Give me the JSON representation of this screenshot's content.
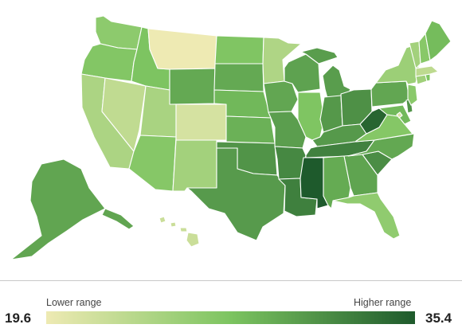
{
  "legend": {
    "min": "19.6",
    "max": "35.4",
    "low_label": "Lower range",
    "high_label": "Higher range",
    "scale_min": 19.6,
    "scale_max": 35.4
  },
  "colors": {
    "low": "#eeeab3",
    "mid": "#7cc460",
    "high": "#1e5a2c"
  },
  "states": [
    {
      "abbr": "WA",
      "value": 26.3
    },
    {
      "abbr": "OR",
      "value": 27.0
    },
    {
      "abbr": "CA",
      "value": 24.2
    },
    {
      "abbr": "NV",
      "value": 22.8
    },
    {
      "abbr": "ID",
      "value": 27.4
    },
    {
      "abbr": "MT",
      "value": 19.6
    },
    {
      "abbr": "WY",
      "value": 29.5
    },
    {
      "abbr": "UT",
      "value": 24.4
    },
    {
      "abbr": "CO",
      "value": 21.3
    },
    {
      "abbr": "AZ",
      "value": 26.8
    },
    {
      "abbr": "NM",
      "value": 24.8
    },
    {
      "abbr": "ND",
      "value": 27.2
    },
    {
      "abbr": "SD",
      "value": 29.5
    },
    {
      "abbr": "NE",
      "value": 28.4
    },
    {
      "abbr": "KS",
      "value": 28.9
    },
    {
      "abbr": "OK",
      "value": 31.1
    },
    {
      "abbr": "TX",
      "value": 30.6
    },
    {
      "abbr": "MN",
      "value": 24.0
    },
    {
      "abbr": "IA",
      "value": 29.7
    },
    {
      "abbr": "MO",
      "value": 30.3
    },
    {
      "abbr": "AR",
      "value": 32.0
    },
    {
      "abbr": "LA",
      "value": 32.6
    },
    {
      "abbr": "WI",
      "value": 30.0
    },
    {
      "abbr": "IL",
      "value": 27.3
    },
    {
      "abbr": "MI",
      "value": 30.4
    },
    {
      "abbr": "IN",
      "value": 30.8
    },
    {
      "abbr": "OH",
      "value": 31.4
    },
    {
      "abbr": "KY",
      "value": 30.7
    },
    {
      "abbr": "TN",
      "value": 32.5
    },
    {
      "abbr": "MS",
      "value": 35.4
    },
    {
      "abbr": "AL",
      "value": 29.4
    },
    {
      "abbr": "GA",
      "value": 29.9
    },
    {
      "abbr": "FL",
      "value": 26.1
    },
    {
      "abbr": "SC",
      "value": 31.6
    },
    {
      "abbr": "NC",
      "value": 29.6
    },
    {
      "abbr": "VA",
      "value": 26.9
    },
    {
      "abbr": "WV",
      "value": 34.6
    },
    {
      "abbr": "PA",
      "value": 29.7
    },
    {
      "abbr": "NY",
      "value": 25.3
    },
    {
      "abbr": "VT",
      "value": 24.8
    },
    {
      "abbr": "NH",
      "value": 26.7
    },
    {
      "abbr": "ME",
      "value": 28.1
    },
    {
      "abbr": "MA",
      "value": 23.0
    },
    {
      "abbr": "CT",
      "value": 25.0
    },
    {
      "abbr": "RI",
      "value": 27.3
    },
    {
      "abbr": "NJ",
      "value": 26.5
    },
    {
      "abbr": "DE",
      "value": 31.1
    },
    {
      "abbr": "MD",
      "value": 28.3
    },
    {
      "abbr": "DC",
      "value": 20.9
    },
    {
      "abbr": "AK",
      "value": 29.8
    },
    {
      "abbr": "HI",
      "value": 22.1
    }
  ]
}
